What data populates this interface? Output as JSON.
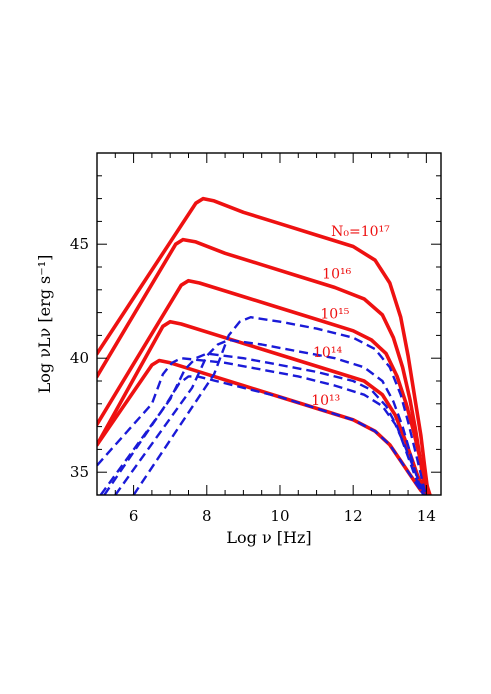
{
  "chart_data": {
    "type": "line",
    "xlabel": "Log ν [Hz]",
    "ylabel": "Log νLν [erg s⁻¹]",
    "xlim": [
      5,
      14.4
    ],
    "ylim": [
      34,
      49
    ],
    "x_ticks": [
      6,
      8,
      10,
      12,
      14
    ],
    "y_ticks": [
      35,
      40,
      45
    ],
    "grid": false,
    "colors": {
      "solid": "#ee1111",
      "dashed": "#1a1ad8"
    },
    "annotations": [
      {
        "text": "N₀=10¹⁷",
        "x": 12.2,
        "y": 45.35
      },
      {
        "text": "10¹⁶",
        "x": 11.55,
        "y": 43.5
      },
      {
        "text": "10¹⁵",
        "x": 11.5,
        "y": 41.75
      },
      {
        "text": "10¹⁴",
        "x": 11.3,
        "y": 40.05
      },
      {
        "text": "10¹³",
        "x": 11.25,
        "y": 37.95
      }
    ],
    "series": [
      {
        "name": "10¹⁷",
        "style": "solid",
        "x": [
          5.0,
          7.7,
          7.9,
          8.2,
          9.0,
          10.0,
          11.0,
          12.0,
          12.6,
          13.0,
          13.3,
          13.5,
          13.7,
          13.85,
          13.95,
          14.02,
          14.07
        ],
        "y": [
          40.2,
          46.8,
          47.0,
          46.9,
          46.4,
          45.9,
          45.4,
          44.9,
          44.3,
          43.3,
          41.8,
          40.1,
          38.1,
          36.6,
          35.3,
          34.4,
          34.0
        ]
      },
      {
        "name": "10¹⁷",
        "style": "dashed",
        "x": [
          6.0,
          8.2,
          8.6,
          8.9,
          9.2,
          10.0,
          11.0,
          12.0,
          12.6,
          13.0,
          13.3,
          13.5,
          13.7,
          13.85,
          13.95,
          14.02,
          14.07
        ],
        "y": [
          34.0,
          39.3,
          41.0,
          41.6,
          41.8,
          41.6,
          41.3,
          40.9,
          40.4,
          39.6,
          38.4,
          37.2,
          35.9,
          34.9,
          34.2,
          34.0,
          34.0
        ]
      },
      {
        "name": "10¹⁶",
        "style": "solid",
        "x": [
          5.0,
          7.15,
          7.35,
          7.7,
          8.5,
          9.5,
          10.5,
          11.5,
          12.3,
          12.8,
          13.1,
          13.35,
          13.55,
          13.7,
          13.82,
          13.92,
          14.0
        ],
        "y": [
          39.2,
          45.0,
          45.2,
          45.1,
          44.6,
          44.1,
          43.6,
          43.1,
          42.6,
          41.9,
          40.9,
          39.6,
          38.2,
          36.9,
          35.7,
          34.6,
          34.0
        ]
      },
      {
        "name": "10¹⁶",
        "style": "dashed",
        "x": [
          5.5,
          7.6,
          8.0,
          8.3,
          8.6,
          9.5,
          10.5,
          11.5,
          12.3,
          12.8,
          13.1,
          13.35,
          13.55,
          13.7,
          13.82,
          13.92,
          14.0
        ],
        "y": [
          34.0,
          38.7,
          40.1,
          40.6,
          40.8,
          40.6,
          40.3,
          40.0,
          39.6,
          39.0,
          38.1,
          37.0,
          35.9,
          35.0,
          34.4,
          34.0,
          34.0
        ]
      },
      {
        "name": "10¹⁵",
        "style": "solid",
        "x": [
          5.0,
          7.3,
          7.5,
          7.8,
          9.0,
          10.0,
          11.0,
          12.0,
          12.5,
          12.9,
          13.2,
          13.45,
          13.65,
          13.8,
          13.92,
          14.02,
          14.1
        ],
        "y": [
          37.1,
          43.2,
          43.4,
          43.3,
          42.7,
          42.2,
          41.7,
          41.2,
          40.8,
          40.2,
          39.2,
          38.0,
          36.8,
          35.8,
          35.0,
          34.4,
          34.0
        ]
      },
      {
        "name": "10¹⁵",
        "style": "dashed",
        "x": [
          5.1,
          7.0,
          7.4,
          7.7,
          8.0,
          9.0,
          10.0,
          11.0,
          12.0,
          12.5,
          12.9,
          13.2,
          13.45,
          13.65,
          13.8,
          13.92,
          14.02
        ],
        "y": [
          34.0,
          38.2,
          39.5,
          40.0,
          40.2,
          40.0,
          39.7,
          39.4,
          39.0,
          38.6,
          37.9,
          37.0,
          35.9,
          35.0,
          34.4,
          34.0,
          34.0
        ]
      },
      {
        "name": "10¹⁴",
        "style": "solid",
        "x": [
          5.0,
          6.8,
          7.0,
          7.3,
          8.5,
          9.5,
          10.5,
          11.5,
          12.3,
          12.8,
          13.15,
          13.4,
          13.6,
          13.75,
          13.88,
          13.98,
          14.05
        ],
        "y": [
          36.2,
          41.4,
          41.6,
          41.5,
          40.9,
          40.4,
          39.9,
          39.4,
          39.0,
          38.4,
          37.5,
          36.5,
          35.6,
          34.9,
          34.4,
          34.1,
          34.0
        ]
      },
      {
        "name": "10¹⁴",
        "style": "dashed",
        "x": [
          5.0,
          6.5,
          6.8,
          7.05,
          7.3,
          8.5,
          9.5,
          10.5,
          11.5,
          12.3,
          12.8,
          13.15,
          13.4,
          13.6,
          13.75,
          13.88,
          13.98
        ],
        "y": [
          35.3,
          38.0,
          39.3,
          39.8,
          40.0,
          39.8,
          39.5,
          39.2,
          38.8,
          38.4,
          37.9,
          37.1,
          36.2,
          35.4,
          34.8,
          34.3,
          34.0
        ]
      },
      {
        "name": "10¹³",
        "style": "solid",
        "x": [
          5.0,
          6.5,
          6.7,
          7.0,
          8.0,
          9.0,
          10.0,
          11.0,
          12.0,
          12.6,
          13.0,
          13.3,
          13.55,
          13.72,
          13.85,
          13.95,
          14.02
        ],
        "y": [
          36.2,
          39.7,
          39.9,
          39.8,
          39.3,
          38.8,
          38.3,
          37.8,
          37.3,
          36.8,
          36.2,
          35.5,
          34.9,
          34.5,
          34.2,
          34.05,
          34.0
        ]
      },
      {
        "name": "10¹³",
        "style": "dashed",
        "x": [
          5.2,
          6.9,
          7.25,
          7.5,
          7.75,
          8.0,
          9.0,
          10.0,
          11.0,
          12.0,
          12.6,
          13.0,
          13.3,
          13.55,
          13.72,
          13.85,
          13.95
        ],
        "y": [
          34.0,
          38.0,
          38.9,
          39.2,
          39.2,
          39.1,
          38.7,
          38.3,
          37.8,
          37.3,
          36.8,
          36.2,
          35.5,
          34.9,
          34.5,
          34.2,
          34.0
        ]
      }
    ]
  }
}
